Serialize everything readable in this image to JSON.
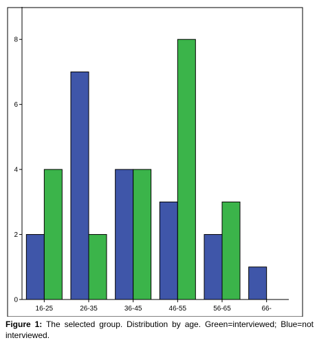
{
  "chart_data": {
    "type": "bar",
    "categories": [
      "16-25",
      "26-35",
      "36-45",
      "46-55",
      "56-65",
      "66-"
    ],
    "series": [
      {
        "values": [
          2,
          7,
          4,
          3,
          2,
          1
        ],
        "color": "#3f56a9"
      },
      {
        "values": [
          4,
          2,
          4,
          8,
          3,
          0
        ],
        "color": "#3bb44a"
      }
    ],
    "ylim": [
      0,
      9
    ],
    "yticks": [
      0,
      2,
      4,
      6,
      8
    ],
    "title": "",
    "xlabel": "",
    "ylabel": "",
    "grid": false,
    "legend": "none",
    "background_color": "#ffffff"
  },
  "caption": {
    "label": "Figure 1:",
    "text": " The selected group. Distribution by age. Green=interviewed; Blue=not interviewed."
  }
}
